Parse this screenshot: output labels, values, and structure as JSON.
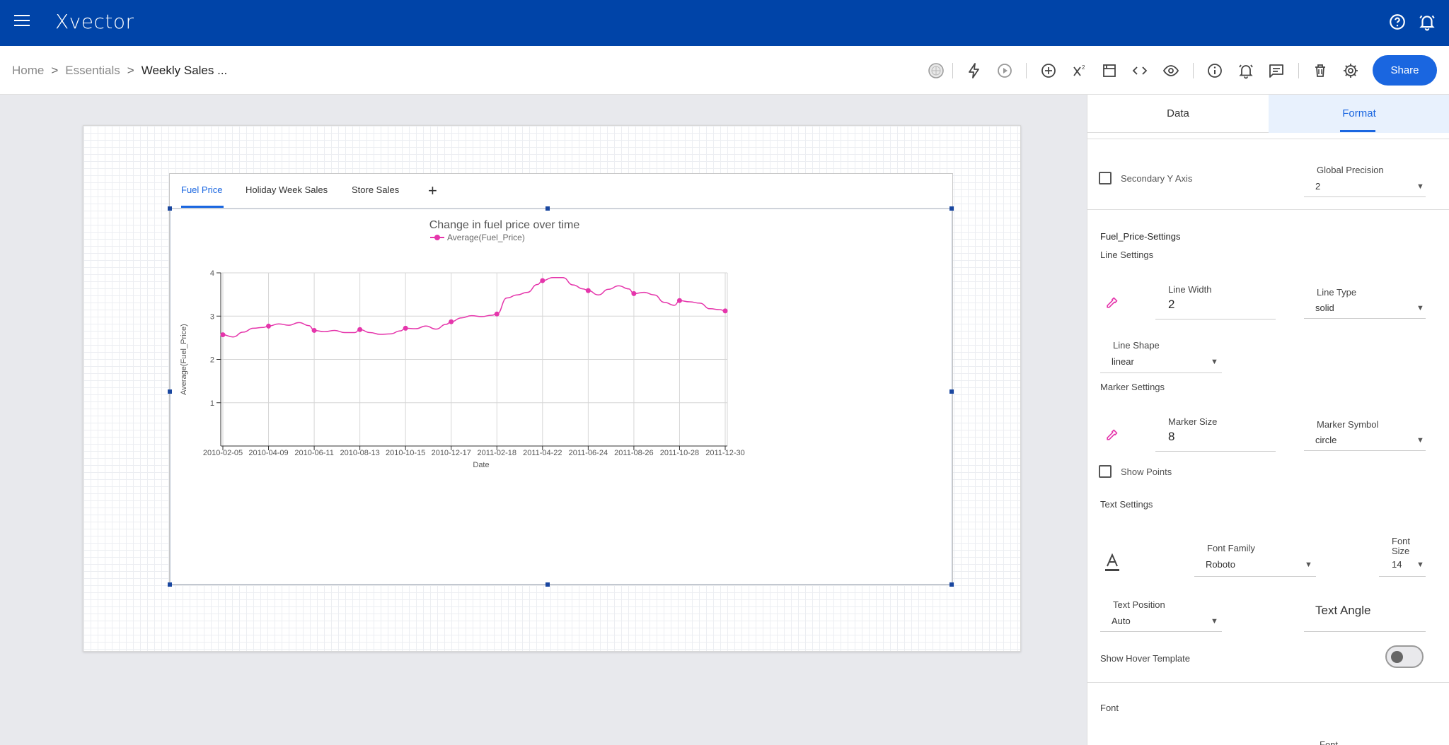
{
  "app": {
    "logo": "Xvector",
    "brand_color": "#0044a8",
    "accent_color": "#1a66e0",
    "line_color": "#e535ab"
  },
  "topbar": {
    "icons": [
      "menu-icon",
      "help-icon",
      "notifications-icon"
    ]
  },
  "breadcrumb": {
    "home": "Home",
    "sep1": ">",
    "section": "Essentials",
    "sep2": ">",
    "current": "Weekly Sales ..."
  },
  "toolbar": {
    "icons": [
      "globe-icon",
      "lightning-icon",
      "play-icon",
      "add-circle-icon",
      "superscript-icon",
      "save-layout-icon",
      "code-icon",
      "eye-icon",
      "info-icon",
      "alert-icon",
      "comment-icon",
      "trash-icon",
      "settings-icon"
    ],
    "share_label": "Share"
  },
  "widget": {
    "tabs": [
      "Fuel Price",
      "Holiday Week Sales",
      "Store Sales"
    ],
    "active_tab": 0,
    "add_tab": "+"
  },
  "chart_data": {
    "type": "line",
    "title": "Change in fuel price over time",
    "xlabel": "Date",
    "ylabel": "Average(Fuel_Price)",
    "legend": "Average(Fuel_Price)",
    "legend_position": "top-center",
    "ylim": [
      0,
      4
    ],
    "yticks": [
      1,
      2,
      3,
      4
    ],
    "xticks": [
      "2010-02-05",
      "2010-04-09",
      "2010-06-11",
      "2010-08-13",
      "2010-10-15",
      "2010-12-17",
      "2011-02-18",
      "2011-04-22",
      "2011-06-24",
      "2011-08-26",
      "2011-10-28",
      "2011-12-30"
    ],
    "grid": true,
    "x": [
      "2010-02-05",
      "2010-02-19",
      "2010-03-05",
      "2010-03-19",
      "2010-04-02",
      "2010-04-09",
      "2010-04-23",
      "2010-05-07",
      "2010-05-21",
      "2010-06-04",
      "2010-06-11",
      "2010-06-25",
      "2010-07-09",
      "2010-07-23",
      "2010-08-06",
      "2010-08-13",
      "2010-08-27",
      "2010-09-10",
      "2010-09-24",
      "2010-10-08",
      "2010-10-15",
      "2010-10-29",
      "2010-11-12",
      "2010-11-26",
      "2010-12-10",
      "2010-12-17",
      "2010-12-31",
      "2011-01-14",
      "2011-01-28",
      "2011-02-11",
      "2011-02-18",
      "2011-03-04",
      "2011-03-18",
      "2011-04-01",
      "2011-04-15",
      "2011-04-22",
      "2011-05-06",
      "2011-05-20",
      "2011-06-03",
      "2011-06-17",
      "2011-06-24",
      "2011-07-08",
      "2011-07-22",
      "2011-08-05",
      "2011-08-19",
      "2011-08-26",
      "2011-09-09",
      "2011-09-23",
      "2011-10-07",
      "2011-10-21",
      "2011-10-28",
      "2011-11-11",
      "2011-11-25",
      "2011-12-09",
      "2011-12-23",
      "2011-12-30"
    ],
    "values": [
      2.57,
      2.52,
      2.63,
      2.72,
      2.74,
      2.77,
      2.82,
      2.79,
      2.85,
      2.78,
      2.67,
      2.64,
      2.67,
      2.62,
      2.62,
      2.69,
      2.62,
      2.58,
      2.59,
      2.66,
      2.72,
      2.71,
      2.77,
      2.7,
      2.81,
      2.87,
      2.96,
      3.01,
      2.99,
      3.02,
      3.05,
      3.42,
      3.49,
      3.55,
      3.73,
      3.82,
      3.89,
      3.89,
      3.72,
      3.63,
      3.59,
      3.49,
      3.62,
      3.7,
      3.63,
      3.52,
      3.55,
      3.49,
      3.32,
      3.25,
      3.36,
      3.33,
      3.3,
      3.17,
      3.15,
      3.12
    ],
    "marker_points": [
      "2010-02-05",
      "2010-04-09",
      "2010-06-11",
      "2010-08-13",
      "2010-10-15",
      "2010-12-17",
      "2011-02-18",
      "2011-04-22",
      "2011-06-24",
      "2011-08-26",
      "2011-10-28",
      "2011-12-30"
    ]
  },
  "panel": {
    "tabs": [
      "Data",
      "Format"
    ],
    "active_tab": 1,
    "secondary_y_axis": {
      "label": "Secondary Y Axis",
      "checked": false
    },
    "global_precision": {
      "label": "Global Precision",
      "value": "2"
    },
    "series_title": "Fuel_Price-Settings",
    "line_settings": {
      "title": "Line Settings",
      "width_label": "Line Width",
      "width_value": "2",
      "type_label": "Line Type",
      "type_value": "solid",
      "shape_label": "Line Shape",
      "shape_value": "linear"
    },
    "marker_settings": {
      "title": "Marker Settings",
      "size_label": "Marker Size",
      "size_value": "8",
      "symbol_label": "Marker Symbol",
      "symbol_value": "circle",
      "show_points_label": "Show Points",
      "show_points_checked": false
    },
    "text_settings": {
      "title": "Text Settings",
      "font_family_label": "Font Family",
      "font_family_value": "Roboto",
      "font_size_label_1": "Font",
      "font_size_label_2": "Size",
      "font_size_value": "14",
      "position_label": "Text Position",
      "position_value": "Auto",
      "angle_label": "Text Angle"
    },
    "hover": {
      "label": "Show Hover Template",
      "enabled": false
    },
    "font_section": {
      "title": "Font",
      "partial_label": "Font"
    }
  }
}
